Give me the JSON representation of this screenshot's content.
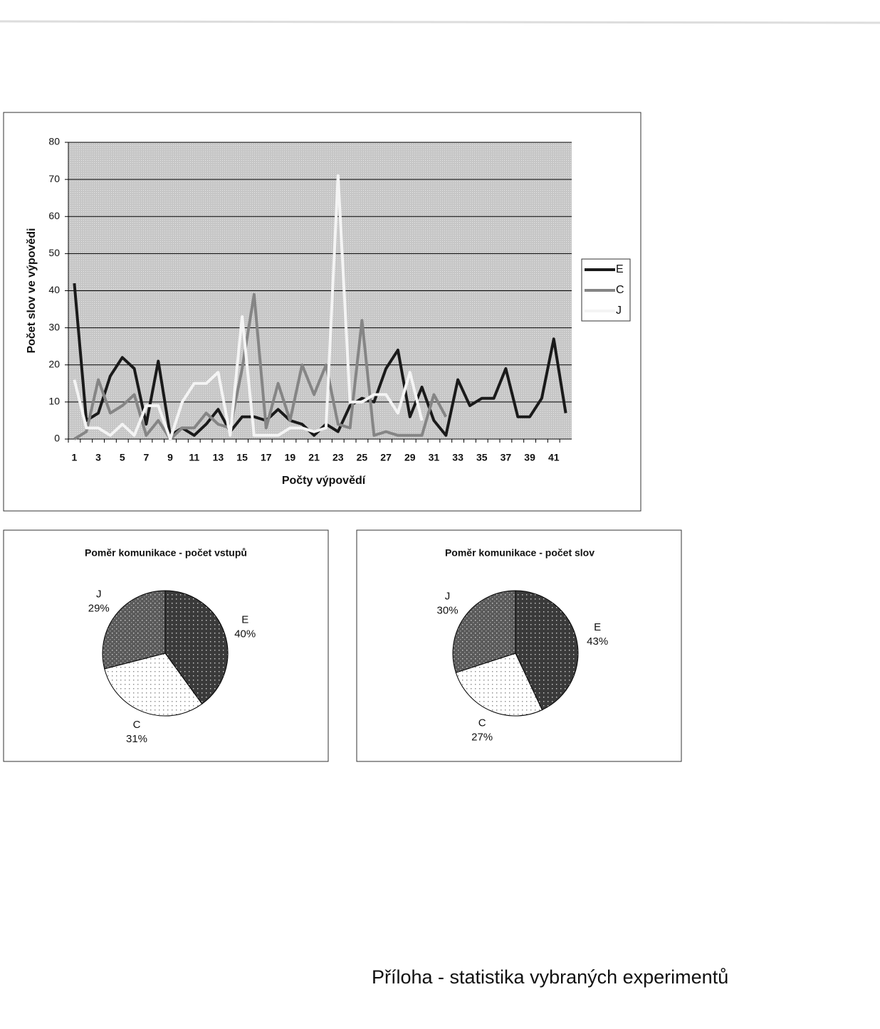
{
  "chart_data": [
    {
      "type": "line",
      "x_label": "Počty výpovědí",
      "y_label": "Počet slov ve výpovědi",
      "categories": [
        1,
        null,
        3,
        null,
        5,
        null,
        7,
        null,
        9,
        null,
        11,
        null,
        13,
        null,
        15,
        null,
        17,
        null,
        19,
        null,
        21,
        null,
        23,
        null,
        25,
        null,
        27,
        null,
        29,
        null,
        31,
        null,
        33,
        null,
        35,
        null,
        37,
        null,
        39,
        null,
        41,
        null
      ],
      "series": [
        {
          "name": "E",
          "color": "#1a1a1a",
          "values": [
            42,
            5,
            7,
            17,
            22,
            19,
            4,
            21,
            1,
            3,
            1,
            4,
            8,
            2,
            6,
            6,
            5,
            8,
            5,
            4,
            1,
            4,
            2,
            9,
            11,
            10,
            19,
            24,
            6,
            14,
            5,
            1,
            16,
            9,
            11,
            11,
            19,
            6,
            6,
            11,
            27,
            7
          ]
        },
        {
          "name": "C",
          "color": "#858585",
          "values": [
            0,
            2,
            16,
            7,
            9,
            12,
            1,
            5,
            0,
            3,
            3,
            7,
            4,
            3,
            19,
            39,
            3,
            15,
            5,
            20,
            12,
            20,
            4,
            3,
            32,
            1,
            2,
            1,
            1,
            1,
            12,
            6,
            null,
            null,
            null,
            null,
            null,
            null,
            null,
            null,
            null,
            null
          ]
        },
        {
          "name": "J",
          "color": "#f4f4f4",
          "values": [
            16,
            3,
            3,
            1,
            4,
            1,
            9,
            9,
            0,
            10,
            15,
            15,
            18,
            1,
            33,
            1,
            1,
            1,
            3,
            3,
            2,
            3,
            71,
            10,
            10,
            12,
            12,
            7,
            18,
            5,
            null,
            null,
            null,
            null,
            null,
            null,
            null,
            null,
            null,
            null,
            null,
            null
          ]
        }
      ],
      "ylim": [
        0,
        80
      ],
      "yticks": [
        0,
        10,
        20,
        30,
        40,
        50,
        60,
        70,
        80
      ],
      "grid": true,
      "legend": "right"
    },
    {
      "type": "pie",
      "title": "Poměr komunikace - počet vstupů",
      "categories": [
        "E",
        "C",
        "J"
      ],
      "values": [
        40,
        31,
        29
      ],
      "value_labels": [
        "40%",
        "31%",
        "29%"
      ],
      "colors": [
        "#3a3a3a",
        "#ffffff",
        "#5a5a5a"
      ]
    },
    {
      "type": "pie",
      "title": "Poměr komunikace - počet slov",
      "categories": [
        "E",
        "C",
        "J"
      ],
      "values": [
        43,
        27,
        30
      ],
      "value_labels": [
        "43%",
        "27%",
        "30%"
      ],
      "colors": [
        "#3a3a3a",
        "#ffffff",
        "#5a5a5a"
      ]
    }
  ],
  "caption": "Příloha - statistika vybraných experimentů"
}
